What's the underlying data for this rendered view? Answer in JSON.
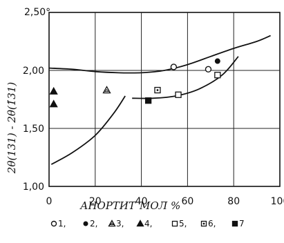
{
  "chart_data": {
    "type": "scatter",
    "xlabel": "АНОРТИТ",
    "xlabel_unit": "МОЛ %",
    "ylabel": "2θ(131) - 2θ(1̄31)",
    "xlim": [
      0,
      100
    ],
    "ylim": [
      1.0,
      2.5
    ],
    "x_ticks": [
      "0",
      "20",
      "40",
      "60",
      "80",
      "100"
    ],
    "y_ticks": [
      "1,00",
      "1,50",
      "2,00"
    ],
    "y_top_tick": "2,50°",
    "grid": true,
    "series": [
      {
        "name": "1",
        "marker": "open-circle",
        "points": [
          [
            54,
            2.03
          ],
          [
            69,
            2.01
          ]
        ]
      },
      {
        "name": "2",
        "marker": "filled-circle",
        "points": [
          [
            73,
            2.08
          ]
        ]
      },
      {
        "name": "3",
        "marker": "open-triangle",
        "points": [
          [
            25,
            1.83
          ]
        ]
      },
      {
        "name": "4",
        "marker": "filled-triangle",
        "points": [
          [
            2,
            1.82
          ],
          [
            2,
            1.71
          ]
        ]
      },
      {
        "name": "5",
        "marker": "open-square",
        "points": [
          [
            56,
            1.79
          ],
          [
            73,
            1.96
          ]
        ]
      },
      {
        "name": "6",
        "marker": "dotted-square",
        "points": [
          [
            47,
            1.83
          ]
        ]
      },
      {
        "name": "7",
        "marker": "filled-square",
        "points": [
          [
            43,
            1.74
          ]
        ]
      }
    ],
    "curves": [
      {
        "points": [
          [
            0,
            2.02
          ],
          [
            10,
            2.01
          ],
          [
            20,
            1.99
          ],
          [
            30,
            1.98
          ],
          [
            40,
            1.98
          ],
          [
            50,
            2.0
          ],
          [
            60,
            2.05
          ],
          [
            70,
            2.12
          ],
          [
            80,
            2.19
          ],
          [
            90,
            2.25
          ],
          [
            96,
            2.3
          ]
        ]
      },
      {
        "points": [
          [
            36,
            1.76
          ],
          [
            45,
            1.76
          ],
          [
            55,
            1.78
          ],
          [
            65,
            1.84
          ],
          [
            75,
            1.96
          ],
          [
            82,
            2.12
          ]
        ]
      },
      {
        "points": [
          [
            1,
            1.19
          ],
          [
            10,
            1.29
          ],
          [
            20,
            1.44
          ],
          [
            28,
            1.63
          ],
          [
            33,
            1.78
          ]
        ]
      }
    ],
    "legend_labels": [
      "1",
      "2",
      "3",
      "4",
      "5",
      "6",
      "7"
    ]
  }
}
